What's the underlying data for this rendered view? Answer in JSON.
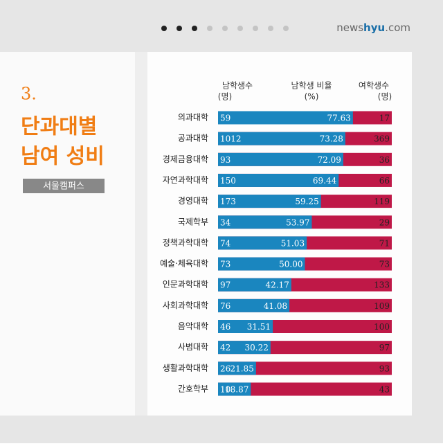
{
  "brand": [
    "news",
    "hyu",
    ".com"
  ],
  "heading": {
    "number": "3.",
    "title_lines": [
      "단과대별",
      "남여 성비"
    ],
    "tag": "서울캠퍼스"
  },
  "chart_data": {
    "type": "bar",
    "orientation": "horizontal",
    "categories": [
      "의과대학",
      "공과대학",
      "경제금융대학",
      "자연과학대학",
      "경영대학",
      "국제학부",
      "정책과학대학",
      "예술·체육대학",
      "인문과학대학",
      "사회과학대학",
      "음악대학",
      "사범대학",
      "생활과학대학",
      "간호학부"
    ],
    "male_counts": {
      "name": "남학생수",
      "unit": "(명)",
      "values": [
        59,
        1012,
        93,
        150,
        173,
        34,
        74,
        73,
        97,
        76,
        46,
        42,
        26,
        10
      ]
    },
    "series": [
      {
        "name": "남학생 비율",
        "unit": "(%)",
        "color": "#1a86bf",
        "values": [
          77.63,
          73.28,
          72.09,
          69.44,
          59.25,
          53.97,
          51.03,
          50.0,
          42.17,
          41.08,
          31.51,
          30.22,
          21.85,
          18.87
        ],
        "value_labels": [
          "77.63",
          "73.28",
          "72.09",
          "69.44",
          "59.25",
          "53.97",
          "51.03",
          "50.00",
          "42.17",
          "41.08",
          "31.51",
          "30.22",
          "21.85",
          "18.87"
        ]
      }
    ],
    "female_counts": {
      "name": "여학생수",
      "unit": "(명)",
      "values": [
        17,
        369,
        36,
        66,
        119,
        29,
        71,
        73,
        133,
        109,
        100,
        97,
        93,
        43
      ]
    },
    "track_color": "#bf1847",
    "xlim": [
      0,
      100
    ]
  }
}
